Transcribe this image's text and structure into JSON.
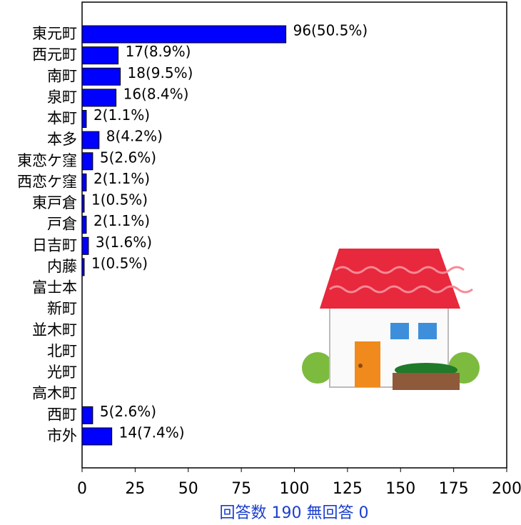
{
  "chart_data": {
    "type": "barh",
    "xlabel": "回答数 190 無回答 0",
    "categories": [
      "東元町",
      "西元町",
      "南町",
      "泉町",
      "本町",
      "本多",
      "東恋ケ窪",
      "西恋ケ窪",
      "東戸倉",
      "戸倉",
      "日吉町",
      "内藤",
      "富士本",
      "新町",
      "並木町",
      "北町",
      "光町",
      "高木町",
      "西町",
      "市外"
    ],
    "values": [
      96,
      17,
      18,
      16,
      2,
      8,
      5,
      2,
      1,
      2,
      3,
      1,
      0,
      0,
      0,
      0,
      0,
      0,
      5,
      14
    ],
    "value_labels": [
      "96(50.5%)",
      "17(8.9%)",
      "18(9.5%)",
      "16(8.4%)",
      "2(1.1%)",
      "8(4.2%)",
      "5(2.6%)",
      "2(1.1%)",
      "1(0.5%)",
      "2(1.1%)",
      "3(1.6%)",
      "1(0.5%)",
      null,
      null,
      null,
      null,
      null,
      null,
      "5(2.6%)",
      "14(7.4%)"
    ],
    "color": "#0000ff",
    "xlim": [
      0,
      200
    ],
    "xticks": [
      0,
      25,
      50,
      75,
      100,
      125,
      150,
      175,
      200
    ]
  }
}
